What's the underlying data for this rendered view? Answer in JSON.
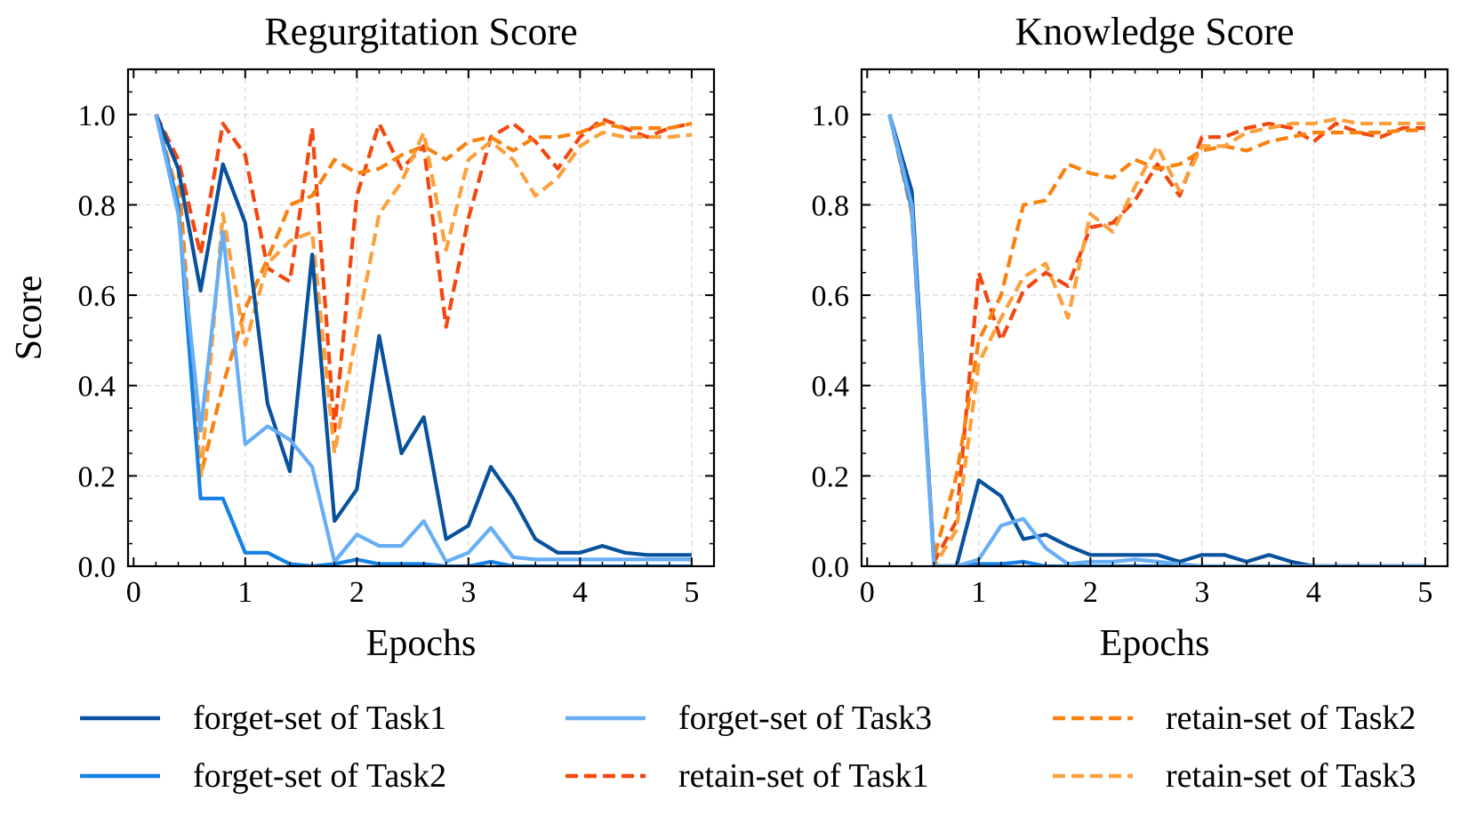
{
  "chart_data": [
    {
      "type": "line",
      "title": "Regurgitation Score",
      "xlabel": "Epochs",
      "ylabel": "Score",
      "xlim": [
        -0.05,
        5.2
      ],
      "ylim": [
        0,
        1.1
      ],
      "xticks": [
        0,
        1,
        2,
        3,
        4,
        5
      ],
      "xtick_labels": [
        "0",
        "1",
        "2",
        "3",
        "4",
        "5"
      ],
      "yticks": [
        0,
        0.2,
        0.4,
        0.6,
        0.8,
        1.0
      ],
      "ytick_labels": [
        "0.0",
        "0.2",
        "0.4",
        "0.6",
        "0.8",
        "1.0"
      ],
      "grid": true,
      "x": [
        0.2,
        0.4,
        0.6,
        0.8,
        1.0,
        1.2,
        1.4,
        1.6,
        1.8,
        2.0,
        2.2,
        2.4,
        2.6,
        2.8,
        3.0,
        3.2,
        3.4,
        3.6,
        3.8,
        4.0,
        4.2,
        4.4,
        4.6,
        4.8,
        5.0
      ],
      "series": [
        {
          "name": "forget-set of Task1",
          "values": [
            1.0,
            0.88,
            0.61,
            0.89,
            0.76,
            0.36,
            0.21,
            0.69,
            0.1,
            0.17,
            0.51,
            0.25,
            0.33,
            0.06,
            0.09,
            0.22,
            0.15,
            0.06,
            0.03,
            0.03,
            0.045,
            0.03,
            0.025,
            0.025,
            0.025
          ]
        },
        {
          "name": "forget-set of Task2",
          "values": [
            1.0,
            0.8,
            0.15,
            0.15,
            0.03,
            0.03,
            0.005,
            0.0,
            0.005,
            0.015,
            0.005,
            0.005,
            0.005,
            0.0,
            0.0,
            0.01,
            0.0,
            0.0,
            0.0,
            0.0,
            0.0,
            0.0,
            0.0,
            0.0,
            0.0
          ]
        },
        {
          "name": "forget-set of Task3",
          "values": [
            1.0,
            0.78,
            0.3,
            0.74,
            0.27,
            0.31,
            0.28,
            0.22,
            0.01,
            0.07,
            0.045,
            0.045,
            0.1,
            0.01,
            0.03,
            0.085,
            0.02,
            0.015,
            0.015,
            0.015,
            0.015,
            0.015,
            0.015,
            0.015,
            0.015
          ]
        },
        {
          "name": "retain-set of Task1",
          "values": [
            1.0,
            0.9,
            0.69,
            0.98,
            0.91,
            0.66,
            0.63,
            0.97,
            0.3,
            0.82,
            0.98,
            0.88,
            0.93,
            0.53,
            0.77,
            0.95,
            0.98,
            0.94,
            0.88,
            0.95,
            0.99,
            0.97,
            0.95,
            0.97,
            0.98
          ]
        },
        {
          "name": "retain-set of Task2",
          "values": [
            1.0,
            0.88,
            0.2,
            0.4,
            0.57,
            0.68,
            0.8,
            0.82,
            0.9,
            0.87,
            0.88,
            0.91,
            0.93,
            0.9,
            0.94,
            0.95,
            0.92,
            0.95,
            0.95,
            0.96,
            0.98,
            0.97,
            0.97,
            0.97,
            0.98
          ]
        },
        {
          "name": "retain-set of Task3",
          "values": [
            1.0,
            0.82,
            0.19,
            0.78,
            0.49,
            0.67,
            0.72,
            0.74,
            0.25,
            0.52,
            0.78,
            0.85,
            0.96,
            0.7,
            0.9,
            0.94,
            0.9,
            0.82,
            0.86,
            0.93,
            0.96,
            0.95,
            0.95,
            0.95,
            0.955
          ]
        }
      ]
    },
    {
      "type": "line",
      "title": "Knowledge Score",
      "xlabel": "Epochs",
      "ylabel": "",
      "xlim": [
        -0.05,
        5.2
      ],
      "ylim": [
        0,
        1.1
      ],
      "xticks": [
        0,
        1,
        2,
        3,
        4,
        5
      ],
      "xtick_labels": [
        "0",
        "1",
        "2",
        "3",
        "4",
        "5"
      ],
      "yticks": [
        0,
        0.2,
        0.4,
        0.6,
        0.8,
        1.0
      ],
      "ytick_labels": [
        "0.0",
        "0.2",
        "0.4",
        "0.6",
        "0.8",
        "1.0"
      ],
      "grid": true,
      "x": [
        0.2,
        0.4,
        0.6,
        0.8,
        1.0,
        1.2,
        1.4,
        1.6,
        1.8,
        2.0,
        2.2,
        2.4,
        2.6,
        2.8,
        3.0,
        3.2,
        3.4,
        3.6,
        3.8,
        4.0,
        4.2,
        4.4,
        4.6,
        4.8,
        5.0
      ],
      "series": [
        {
          "name": "forget-set of Task1",
          "values": [
            1.0,
            0.83,
            0.0,
            0.0,
            0.19,
            0.155,
            0.06,
            0.07,
            0.045,
            0.025,
            0.025,
            0.025,
            0.025,
            0.01,
            0.025,
            0.025,
            0.01,
            0.025,
            0.01,
            0.0,
            0.0,
            0.0,
            0.0,
            0.0,
            0.0
          ]
        },
        {
          "name": "forget-set of Task2",
          "values": [
            1.0,
            0.79,
            0.0,
            0.0,
            0.005,
            0.005,
            0.01,
            0.0,
            0.0,
            0.0,
            0.0,
            0.0,
            0.0,
            0.0,
            0.0,
            0.0,
            0.0,
            0.0,
            0.0,
            0.0,
            0.0,
            0.0,
            0.0,
            0.0,
            0.0
          ]
        },
        {
          "name": "forget-set of Task3",
          "values": [
            1.0,
            0.8,
            0.0,
            0.0,
            0.015,
            0.09,
            0.105,
            0.04,
            0.005,
            0.01,
            0.01,
            0.015,
            0.01,
            0.005,
            0.0,
            0.0,
            0.0,
            0.0,
            0.0,
            0.0,
            0.0,
            0.0,
            0.0,
            0.0,
            0.0
          ]
        },
        {
          "name": "retain-set of Task1",
          "values": [
            1.0,
            0.8,
            0.01,
            0.1,
            0.65,
            0.5,
            0.61,
            0.65,
            0.62,
            0.75,
            0.76,
            0.81,
            0.89,
            0.82,
            0.95,
            0.95,
            0.97,
            0.98,
            0.97,
            0.94,
            0.98,
            0.96,
            0.95,
            0.97,
            0.97
          ]
        },
        {
          "name": "retain-set of Task2",
          "values": [
            1.0,
            0.78,
            0.02,
            0.2,
            0.5,
            0.6,
            0.8,
            0.81,
            0.89,
            0.87,
            0.86,
            0.9,
            0.88,
            0.89,
            0.92,
            0.93,
            0.92,
            0.94,
            0.95,
            0.96,
            0.96,
            0.96,
            0.96,
            0.965,
            0.965
          ]
        },
        {
          "name": "retain-set of Task3",
          "values": [
            1.0,
            0.78,
            0.0,
            0.08,
            0.45,
            0.55,
            0.64,
            0.67,
            0.55,
            0.78,
            0.74,
            0.84,
            0.93,
            0.83,
            0.93,
            0.93,
            0.96,
            0.97,
            0.98,
            0.98,
            0.99,
            0.98,
            0.98,
            0.98,
            0.98
          ]
        }
      ]
    }
  ],
  "legend": {
    "items": [
      {
        "label": "forget-set of Task1",
        "color": "#08519c",
        "dashed": false
      },
      {
        "label": "forget-set of Task2",
        "color": "#1581e6",
        "dashed": false
      },
      {
        "label": "forget-set of Task3",
        "color": "#67aef5",
        "dashed": false
      },
      {
        "label": "retain-set of Task1",
        "color": "#f4470f",
        "dashed": true
      },
      {
        "label": "retain-set of Task2",
        "color": "#f9820f",
        "dashed": true
      },
      {
        "label": "retain-set of Task3",
        "color": "#fba03c",
        "dashed": true
      }
    ]
  }
}
